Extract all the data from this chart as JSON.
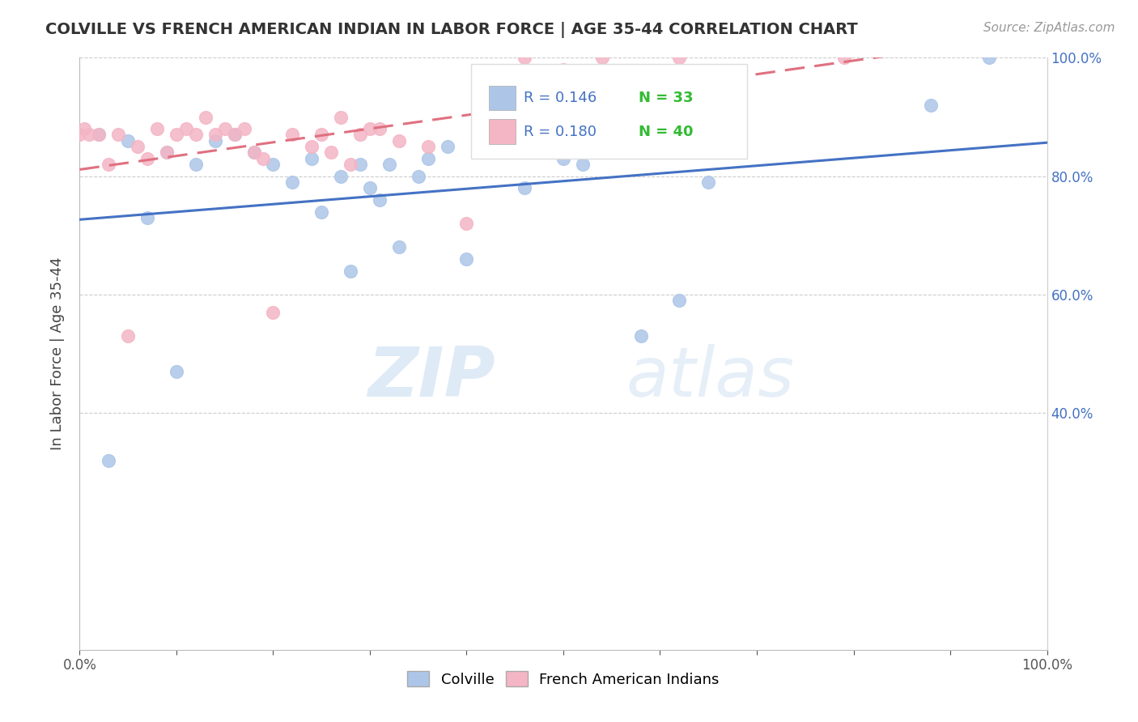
{
  "title": "COLVILLE VS FRENCH AMERICAN INDIAN IN LABOR FORCE | AGE 35-44 CORRELATION CHART",
  "source": "Source: ZipAtlas.com",
  "ylabel": "In Labor Force | Age 35-44",
  "xlim": [
    0,
    1.0
  ],
  "ylim": [
    0,
    1.0
  ],
  "colville_R": 0.146,
  "colville_N": 33,
  "french_R": 0.18,
  "french_N": 40,
  "colville_color": "#adc6e8",
  "french_color": "#f4b5c5",
  "colville_line_color": "#4472c4",
  "french_line_color": "#e07080",
  "n_color": "#33bb33",
  "watermark_zip": "ZIP",
  "watermark_atlas": "atlas",
  "colville_x": [
    0.94,
    0.88,
    0.65,
    0.62,
    0.58,
    0.52,
    0.5,
    0.46,
    0.4,
    0.38,
    0.36,
    0.35,
    0.33,
    0.32,
    0.31,
    0.3,
    0.29,
    0.28,
    0.27,
    0.25,
    0.24,
    0.22,
    0.2,
    0.18,
    0.16,
    0.14,
    0.12,
    0.1,
    0.09,
    0.07,
    0.05,
    0.03,
    0.02
  ],
  "colville_y": [
    1.0,
    0.92,
    0.79,
    0.59,
    0.53,
    0.82,
    0.83,
    0.78,
    0.66,
    0.85,
    0.83,
    0.8,
    0.68,
    0.82,
    0.76,
    0.78,
    0.82,
    0.64,
    0.8,
    0.74,
    0.83,
    0.79,
    0.82,
    0.84,
    0.87,
    0.86,
    0.82,
    0.47,
    0.84,
    0.73,
    0.86,
    0.32,
    0.87
  ],
  "french_x": [
    0.79,
    0.62,
    0.54,
    0.5,
    0.46,
    0.44,
    0.4,
    0.36,
    0.33,
    0.31,
    0.3,
    0.29,
    0.28,
    0.27,
    0.26,
    0.25,
    0.24,
    0.22,
    0.2,
    0.19,
    0.18,
    0.17,
    0.16,
    0.15,
    0.14,
    0.13,
    0.12,
    0.11,
    0.1,
    0.09,
    0.08,
    0.07,
    0.06,
    0.05,
    0.04,
    0.03,
    0.02,
    0.01,
    0.005,
    0.0
  ],
  "french_y": [
    1.0,
    1.0,
    1.0,
    0.98,
    1.0,
    0.95,
    0.72,
    0.85,
    0.86,
    0.88,
    0.88,
    0.87,
    0.82,
    0.9,
    0.84,
    0.87,
    0.85,
    0.87,
    0.57,
    0.83,
    0.84,
    0.88,
    0.87,
    0.88,
    0.87,
    0.9,
    0.87,
    0.88,
    0.87,
    0.84,
    0.88,
    0.83,
    0.85,
    0.53,
    0.87,
    0.82,
    0.87,
    0.87,
    0.88,
    0.87
  ]
}
